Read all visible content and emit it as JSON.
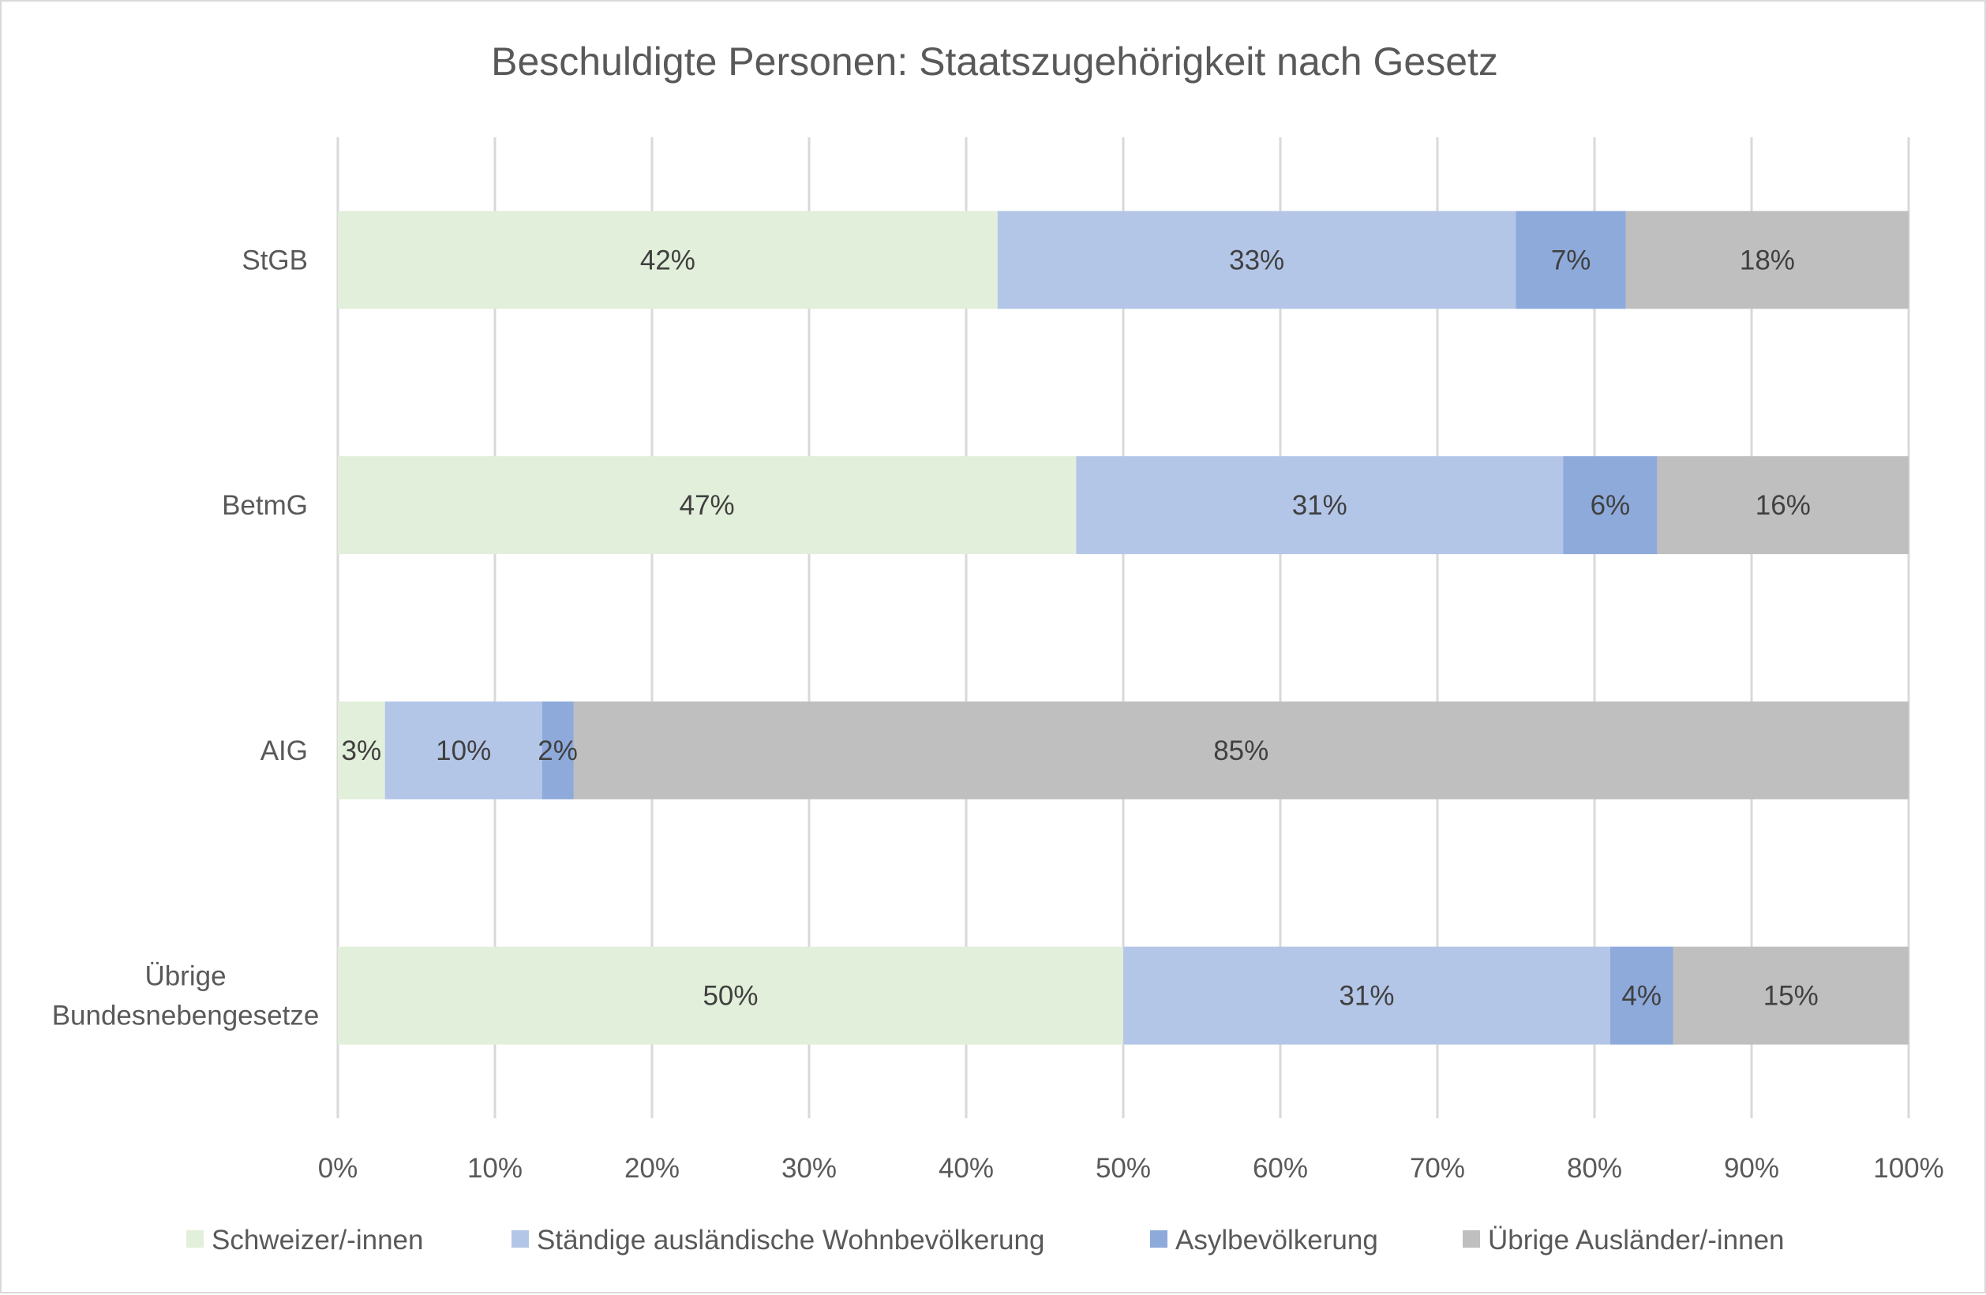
{
  "chart_data": {
    "type": "bar",
    "orientation": "horizontal",
    "stacked": "percent",
    "title": "Beschuldigte Personen: Staatszugehörigkeit nach Gesetz",
    "xlabel": "",
    "ylabel": "",
    "xlim": [
      0,
      100
    ],
    "x_ticks": [
      "0%",
      "10%",
      "20%",
      "30%",
      "40%",
      "50%",
      "60%",
      "70%",
      "80%",
      "90%",
      "100%"
    ],
    "x_tick_values": [
      0,
      10,
      20,
      30,
      40,
      50,
      60,
      70,
      80,
      90,
      100
    ],
    "grid": true,
    "legend_position": "bottom",
    "categories": [
      "StGB",
      "BetmG",
      "AIG",
      "Übrige Bundesnebengesetze"
    ],
    "category_label_lines": [
      [
        "StGB"
      ],
      [
        "BetmG"
      ],
      [
        "AIG"
      ],
      [
        "Übrige",
        "Bundesnebengesetze"
      ]
    ],
    "series": [
      {
        "name": "Schweizer/-innen",
        "color": "#e2efda",
        "values": [
          42,
          47,
          3,
          50
        ],
        "labels": [
          "42%",
          "47%",
          "3%",
          "50%"
        ]
      },
      {
        "name": "Ständige ausländische Wohnbevölkerung",
        "color": "#b4c6e7",
        "values": [
          33,
          31,
          10,
          31
        ],
        "labels": [
          "33%",
          "31%",
          "10%",
          "31%"
        ]
      },
      {
        "name": "Asylbevölkerung",
        "color": "#8eaadb",
        "values": [
          7,
          6,
          2,
          4
        ],
        "labels": [
          "7%",
          "6%",
          "2%",
          "4%"
        ]
      },
      {
        "name": "Übrige Ausländer/-innen",
        "color": "#bfbfbf",
        "values": [
          18,
          16,
          85,
          15
        ],
        "labels": [
          "18%",
          "16%",
          "85%",
          "15%"
        ]
      }
    ]
  },
  "colors": {
    "grid": "#d9d9d9",
    "text": "#595959",
    "data_label": "#404040",
    "frame": "#d9d9d9"
  }
}
